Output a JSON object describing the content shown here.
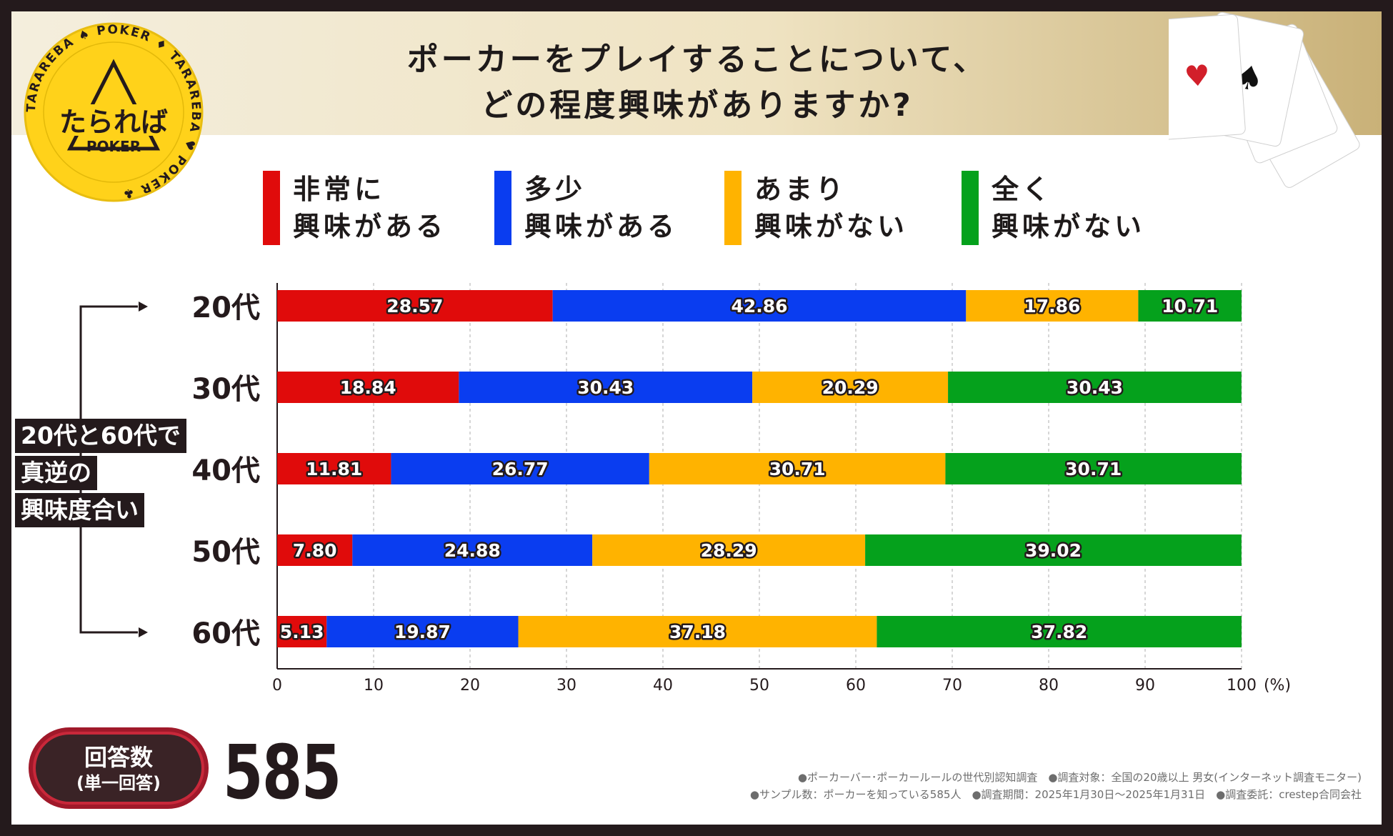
{
  "title_line1": "ポーカーをプレイすることについて、",
  "title_line2": "どの程度興味がありますか?",
  "logo": {
    "main": "たられば",
    "sub": "POKER",
    "ring": "TARAREBA ♠ POKER ♦ TARAREBA ♥ POKER ♣"
  },
  "legend": [
    {
      "label": "非常に\n興味がある",
      "color": "#e00b0b"
    },
    {
      "label": "多少\n興味がある",
      "color": "#0a3df0"
    },
    {
      "label": "あまり\n興味がない",
      "color": "#ffb300"
    },
    {
      "label": "全く\n興味がない",
      "color": "#05a11c"
    }
  ],
  "side_note": [
    "20代と60代で",
    "真逆の",
    "興味度合い"
  ],
  "responses": {
    "label": "回答数",
    "sub": "(単一回答)",
    "count": "585"
  },
  "notes": [
    "●ポーカーバー･ポーカールールの世代別認知調査　●調査対象：全国の20歳以上 男女(インターネット調査モニター)",
    "●サンプル数：ポーカーを知っている585人　●調査期間：2025年1月30日～2025年1月31日　●調査委託：crestep合同会社"
  ],
  "chart_data": {
    "type": "bar",
    "orientation": "horizontal",
    "stacked": true,
    "categories": [
      "20代",
      "30代",
      "40代",
      "50代",
      "60代"
    ],
    "series": [
      {
        "name": "非常に興味がある",
        "color": "#e00b0b",
        "values": [
          28.57,
          18.84,
          11.81,
          7.8,
          5.13
        ]
      },
      {
        "name": "多少興味がある",
        "color": "#0a3df0",
        "values": [
          42.86,
          30.43,
          26.77,
          24.88,
          19.87
        ]
      },
      {
        "name": "あまり興味がない",
        "color": "#ffb300",
        "values": [
          17.86,
          20.29,
          30.71,
          28.29,
          37.18
        ]
      },
      {
        "name": "全く興味がない",
        "color": "#05a11c",
        "values": [
          10.71,
          30.43,
          30.71,
          39.02,
          37.82
        ]
      }
    ],
    "xlim": [
      0,
      100
    ],
    "xticks": [
      0,
      10,
      20,
      30,
      40,
      50,
      60,
      70,
      80,
      90,
      100
    ],
    "xunit": "(%)",
    "grid": true,
    "legend_position": "top"
  }
}
